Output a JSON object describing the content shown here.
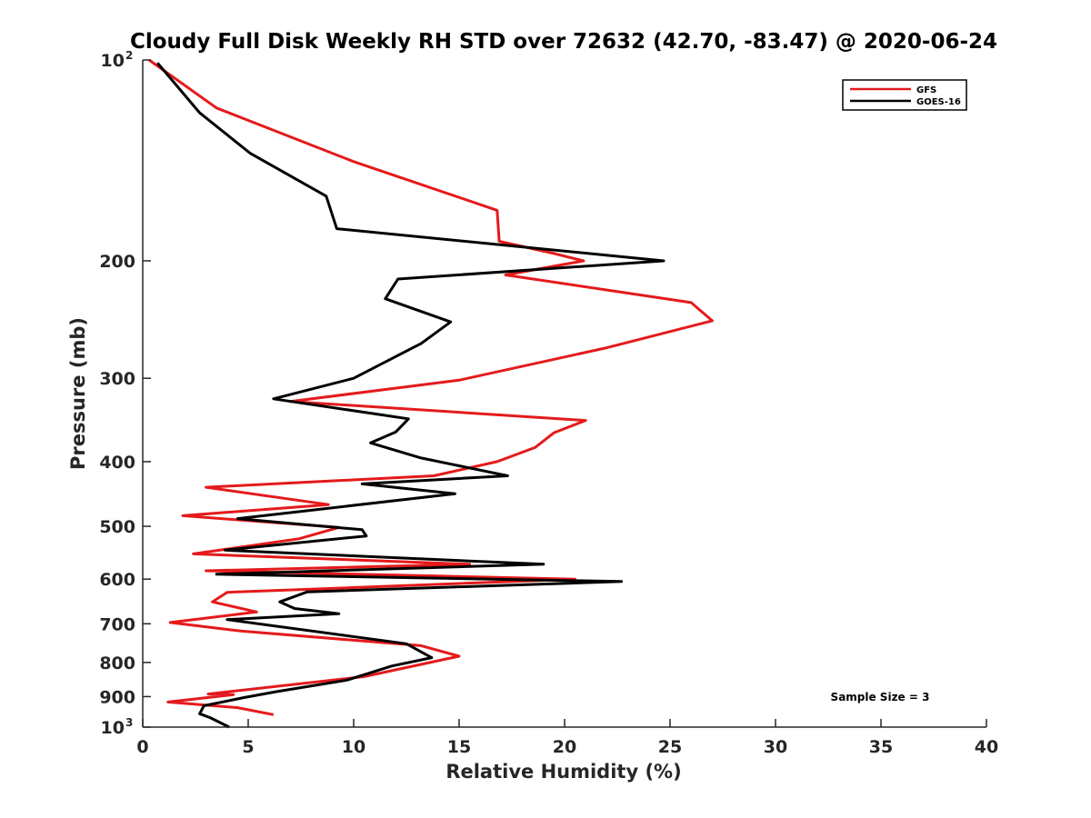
{
  "chart_data": {
    "type": "line",
    "title": "Cloudy Full Disk Weekly RH STD over 72632 (42.70, -83.47) @ 2020-06-24",
    "xlabel": "Relative Humidity (%)",
    "ylabel": "Pressure (mb)",
    "xlim": [
      0,
      40
    ],
    "ylim": [
      100,
      1000
    ],
    "y_scale": "log",
    "y_reversed": true,
    "grid": false,
    "legend": "top-right",
    "x_ticks": [
      "0",
      "5",
      "10",
      "15",
      "20",
      "25",
      "30",
      "35",
      "40"
    ],
    "y_ticks": [
      {
        "value": 100,
        "base": "10",
        "exp": "2"
      },
      {
        "value": 200,
        "label": "200"
      },
      {
        "value": 300,
        "label": "300"
      },
      {
        "value": 400,
        "label": "400"
      },
      {
        "value": 500,
        "label": "500"
      },
      {
        "value": 600,
        "label": "600"
      },
      {
        "value": 700,
        "label": "700"
      },
      {
        "value": 800,
        "label": "800"
      },
      {
        "value": 900,
        "label": "900"
      },
      {
        "value": 1000,
        "base": "10",
        "exp": "3"
      }
    ],
    "annotation": "Sample Size = 3",
    "series": [
      {
        "name": "GFS",
        "color": "#e41a1c",
        "points": [
          [
            0.3,
            100
          ],
          [
            3.5,
            118
          ],
          [
            10,
            142
          ],
          [
            16.8,
            168
          ],
          [
            16.9,
            187
          ],
          [
            19.5,
            195
          ],
          [
            20.9,
            200
          ],
          [
            17.2,
            210
          ],
          [
            26,
            231
          ],
          [
            27,
            246
          ],
          [
            22,
            270
          ],
          [
            15,
            302
          ],
          [
            7,
            325
          ],
          [
            21,
            347
          ],
          [
            19.5,
            362
          ],
          [
            18.6,
            381
          ],
          [
            16.8,
            400
          ],
          [
            13.8,
            420
          ],
          [
            3,
            437
          ],
          [
            8.8,
            464
          ],
          [
            1.9,
            482
          ],
          [
            9.3,
            502
          ],
          [
            7.4,
            522
          ],
          [
            2.4,
            550
          ],
          [
            15.5,
            570
          ],
          [
            3,
            583
          ],
          [
            20.5,
            600
          ],
          [
            4,
            628
          ],
          [
            3.3,
            649
          ],
          [
            5.4,
            672
          ],
          [
            1.3,
            697
          ],
          [
            4.7,
            718
          ],
          [
            13.2,
            755
          ],
          [
            15,
            783
          ],
          [
            10.5,
            840
          ],
          [
            3.1,
            892
          ],
          [
            4.3,
            894
          ],
          [
            1.2,
            917
          ],
          [
            4.5,
            935
          ],
          [
            6.2,
            958
          ]
        ]
      },
      {
        "name": "GOES-16",
        "color": "#000000",
        "points": [
          [
            0.7,
            101
          ],
          [
            2.7,
            120
          ],
          [
            5.1,
            138
          ],
          [
            8.7,
            160
          ],
          [
            9.2,
            179
          ],
          [
            24.7,
            200
          ],
          [
            12.1,
            213
          ],
          [
            11.5,
            228
          ],
          [
            14.6,
            247
          ],
          [
            13.2,
            266
          ],
          [
            10,
            300
          ],
          [
            6.2,
            322
          ],
          [
            12.6,
            345
          ],
          [
            12,
            361
          ],
          [
            10.8,
            375
          ],
          [
            13.2,
            395
          ],
          [
            17.3,
            420
          ],
          [
            10.4,
            432
          ],
          [
            14.8,
            447
          ],
          [
            4.5,
            487
          ],
          [
            10.4,
            506
          ],
          [
            10.6,
            517
          ],
          [
            3.9,
            543
          ],
          [
            19,
            570
          ],
          [
            3.5,
            590
          ],
          [
            22.7,
            605
          ],
          [
            7.8,
            627
          ],
          [
            6.5,
            649
          ],
          [
            7.2,
            664
          ],
          [
            9.3,
            676
          ],
          [
            4,
            690
          ],
          [
            12.5,
            750
          ],
          [
            13.7,
            787
          ],
          [
            11.8,
            810
          ],
          [
            9.7,
            850
          ],
          [
            6.3,
            885
          ],
          [
            4.8,
            903
          ],
          [
            2.9,
            929
          ],
          [
            2.7,
            955
          ],
          [
            3.2,
            968
          ],
          [
            4.1,
            1000
          ]
        ]
      }
    ]
  }
}
